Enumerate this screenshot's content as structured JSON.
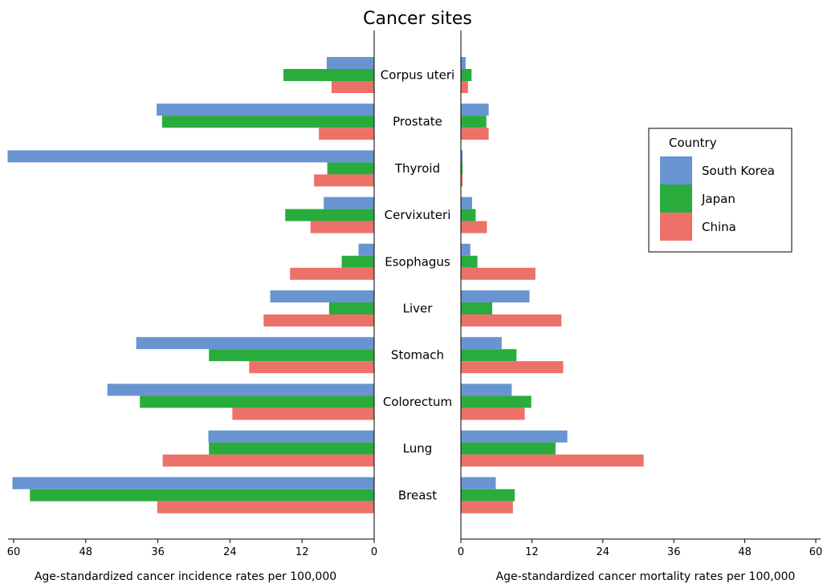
{
  "chart_data": {
    "type": "bar",
    "title": "Cancer sites",
    "orientation": "horizontal",
    "layout": "back-to-back",
    "categories": [
      "Corpus uteri",
      "Prostate",
      "Thyroid",
      "Cervixuteri",
      "Esophagus",
      "Liver",
      "Stomach",
      "Colorectum",
      "Lung",
      "Breast"
    ],
    "series": [
      {
        "name": "South Korea",
        "color": "#6895d1",
        "incidence": [
          7.9,
          36.2,
          61.0,
          8.4,
          2.6,
          17.3,
          39.6,
          44.4,
          27.6,
          60.2
        ],
        "mortality": [
          0.8,
          4.7,
          0.3,
          1.9,
          1.6,
          11.6,
          6.9,
          8.6,
          18.0,
          5.9
        ]
      },
      {
        "name": "Japan",
        "color": "#2aac3d",
        "incidence": [
          15.1,
          35.3,
          7.8,
          14.8,
          5.4,
          7.5,
          27.5,
          39.0,
          27.5,
          57.3
        ],
        "mortality": [
          1.8,
          4.3,
          0.3,
          2.5,
          2.8,
          5.3,
          9.4,
          11.9,
          16.0,
          9.1
        ]
      },
      {
        "name": "China",
        "color": "#ec7169",
        "incidence": [
          7.1,
          9.2,
          10.0,
          10.6,
          14.0,
          18.4,
          20.8,
          23.6,
          35.2,
          36.1
        ],
        "mortality": [
          1.2,
          4.7,
          0.3,
          4.4,
          12.6,
          17.0,
          17.3,
          10.8,
          30.9,
          8.8
        ]
      }
    ],
    "left_axis": {
      "label": "Age-standardized cancer incidence rates per 100,000",
      "ticks": [
        "60",
        "48",
        "36",
        "24",
        "12",
        "0"
      ],
      "range": [
        0,
        60
      ],
      "reversed": true
    },
    "right_axis": {
      "label": "Age-standardized cancer mortality rates per 100,000",
      "ticks": [
        "0",
        "12",
        "24",
        "36",
        "48",
        "60"
      ],
      "range": [
        0,
        60
      ]
    },
    "legend": {
      "title": "Country",
      "position": "right",
      "items": [
        "South Korea",
        "Japan",
        "China"
      ]
    },
    "grid": false
  }
}
